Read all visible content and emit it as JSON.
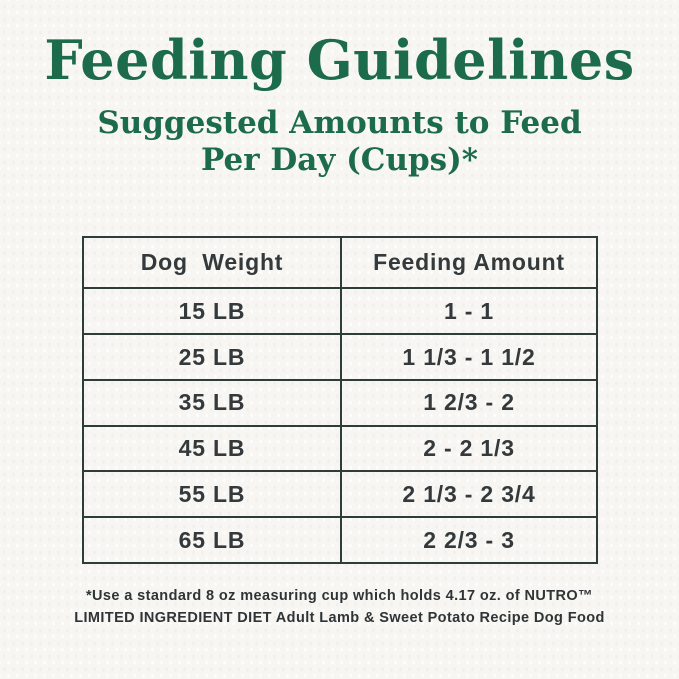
{
  "page": {
    "title": "Feeding Guidelines",
    "subtitle_line1": "Suggested Amounts to Feed",
    "subtitle_line2": "Per Day (Cups)*"
  },
  "table": {
    "columns": [
      "Dog  Weight",
      "Feeding Amount"
    ],
    "rows": [
      {
        "weight": "15 LB",
        "amount": "1 - 1"
      },
      {
        "weight": "25 LB",
        "amount": "1 1/3 - 1 1/2"
      },
      {
        "weight": "35 LB",
        "amount": "1 2/3 - 2"
      },
      {
        "weight": "45 LB",
        "amount": "2 - 2 1/3"
      },
      {
        "weight": "55 LB",
        "amount": "2 1/3 - 2 3/4"
      },
      {
        "weight": "65 LB",
        "amount": "2 2/3 - 3"
      }
    ]
  },
  "footnote": {
    "line1": "*Use a standard 8 oz measuring cup which holds 4.17 oz. of NUTRO™",
    "line2": "LIMITED INGREDIENT DIET Adult Lamb & Sweet Potato Recipe Dog Food"
  },
  "colors": {
    "accent_green": "#1c6b4a",
    "table_border": "#2e3d37",
    "table_text": "#34393b",
    "background": "#f7f6f2"
  }
}
